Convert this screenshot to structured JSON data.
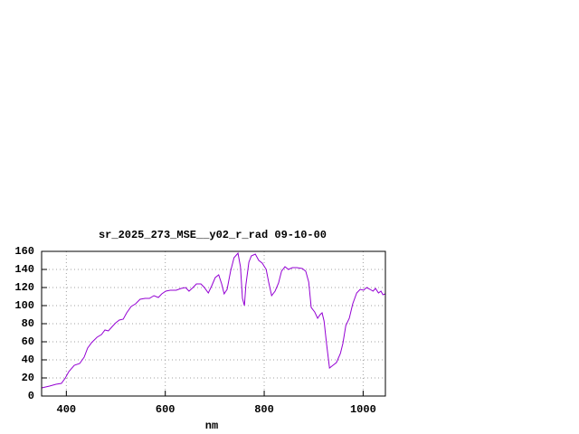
{
  "chart_data": {
    "type": "line",
    "title": "sr_2025_273_MSE__y02_r_rad 09-10-00",
    "x_label": "nm",
    "x": [
      350,
      366,
      379,
      390,
      398,
      405,
      416,
      427,
      436,
      443,
      451,
      462,
      471,
      478,
      485,
      493,
      500,
      507,
      515,
      522,
      531,
      540,
      549,
      559,
      568,
      577,
      586,
      593,
      601,
      610,
      622,
      632,
      641,
      648,
      656,
      663,
      672,
      679,
      687,
      694,
      701,
      708,
      714,
      719,
      725,
      732,
      739,
      747,
      752,
      756,
      760,
      763,
      769,
      774,
      782,
      789,
      796,
      804,
      809,
      815,
      822,
      829,
      835,
      842,
      849,
      857,
      866,
      877,
      884,
      890,
      895,
      902,
      908,
      913,
      917,
      921,
      926,
      932,
      939,
      946,
      954,
      959,
      965,
      972,
      979,
      987,
      994,
      1001,
      1007,
      1014,
      1020,
      1025,
      1031,
      1036,
      1040,
      1045
    ],
    "series": [
      {
        "color": "#9400d3",
        "values": [
          9,
          11,
          13,
          14,
          20,
          27,
          34,
          36,
          43,
          53,
          59,
          65,
          68,
          73,
          72,
          77,
          81,
          84,
          85,
          92,
          99,
          102,
          107,
          108,
          108,
          111,
          109,
          113,
          116,
          117,
          117,
          119,
          120,
          116,
          120,
          124,
          124,
          120,
          114,
          122,
          131,
          134,
          124,
          113,
          118,
          138,
          153,
          158,
          143,
          108,
          100,
          123,
          148,
          155,
          157,
          150,
          147,
          140,
          126,
          111,
          116,
          125,
          138,
          143,
          140,
          142,
          142,
          141,
          138,
          126,
          98,
          93,
          86,
          90,
          92,
          83,
          58,
          31,
          34,
          37,
          47,
          58,
          78,
          86,
          102,
          114,
          118,
          117,
          120,
          118,
          116,
          119,
          114,
          116,
          112,
          113
        ]
      }
    ],
    "xlim": [
      350,
      1045
    ],
    "ylim": [
      0,
      160
    ],
    "xticks": [
      400,
      600,
      800,
      1000
    ],
    "yticks": [
      0,
      20,
      40,
      60,
      80,
      100,
      120,
      140,
      160
    ],
    "grid": true
  }
}
